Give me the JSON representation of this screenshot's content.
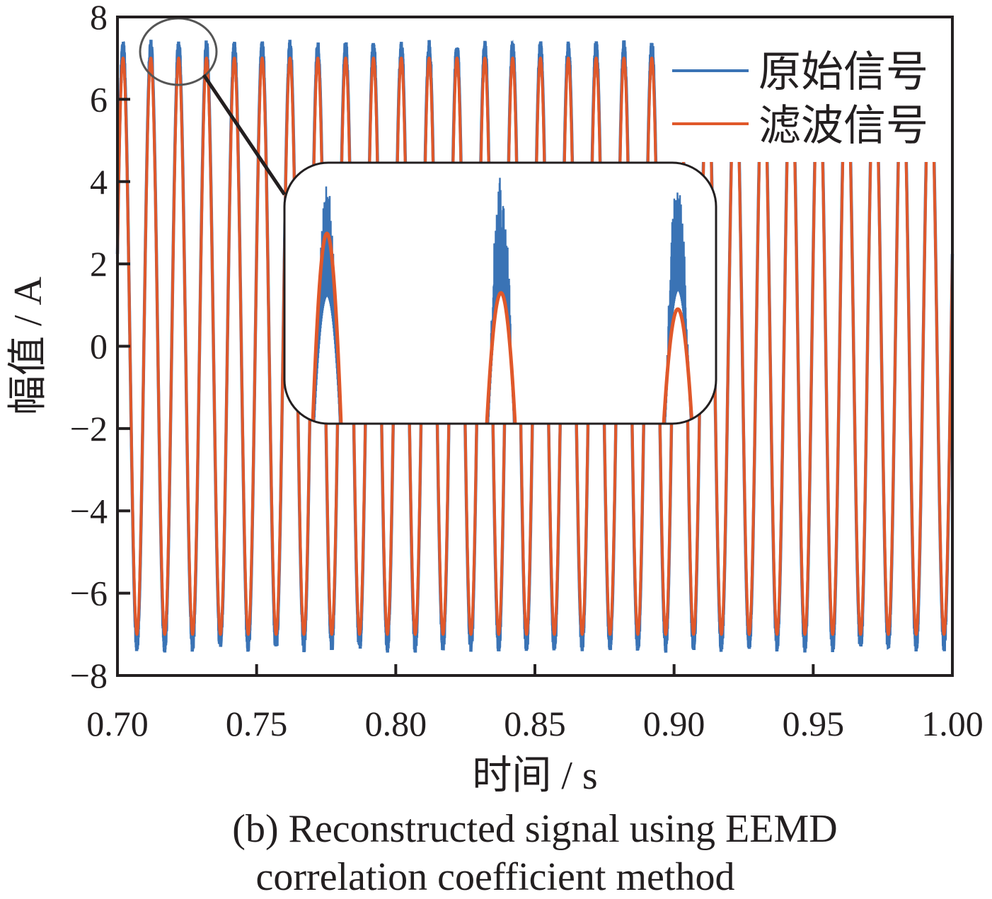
{
  "chart_data": {
    "type": "line",
    "title": "",
    "xlabel": "时间 / s",
    "ylabel": "幅值 / A",
    "xlim": [
      0.7,
      1.0
    ],
    "ylim": [
      -8,
      8
    ],
    "xticks": [
      "0.70",
      "0.75",
      "0.80",
      "0.85",
      "0.90",
      "0.95",
      "1.00"
    ],
    "yticks": [
      "8",
      "6",
      "4",
      "2",
      "0",
      "−2",
      "−4",
      "−6",
      "−8"
    ],
    "xtick_values": [
      0.7,
      0.75,
      0.8,
      0.85,
      0.9,
      0.95,
      1.0
    ],
    "ytick_values": [
      8,
      6,
      4,
      2,
      0,
      -2,
      -4,
      -6,
      -8
    ],
    "grid": false,
    "legend_position": "top-right",
    "series": [
      {
        "name": "原始信号",
        "color": "#3a73b5",
        "frequency_hz": 100,
        "amplitude": 7.25,
        "noise_at_peaks": true,
        "first_peak_s": 0.702
      },
      {
        "name": "滤波信号",
        "color": "#e0582a",
        "frequency_hz": 100,
        "amplitude": 7.0,
        "first_peak_s": 0.702
      }
    ],
    "inset": {
      "description_label": "zoom of peaks near 0.71–0.73 s",
      "peaks": 3
    },
    "caption_lines": [
      "(b) Reconstructed signal using EEMD",
      "correlation coefficient method"
    ]
  }
}
